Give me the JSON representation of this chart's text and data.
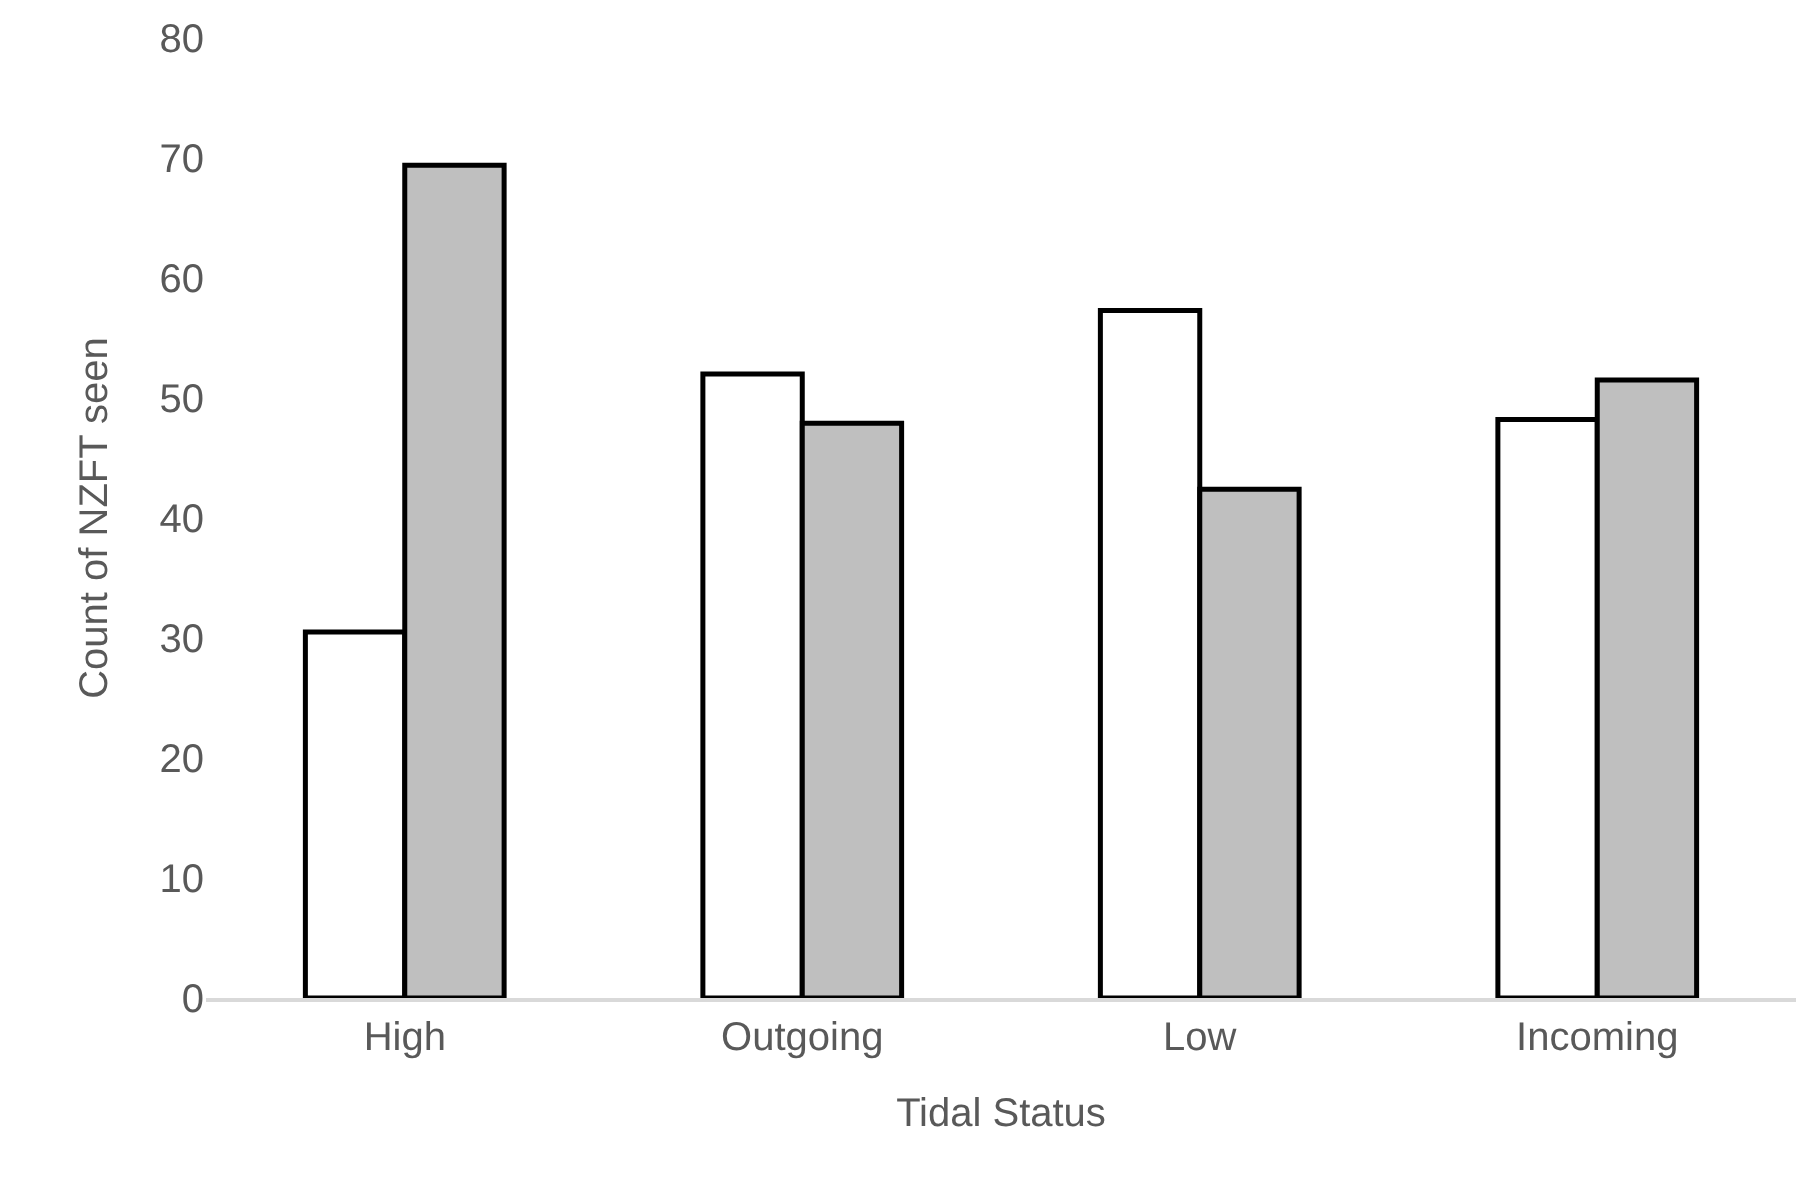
{
  "chart_data": {
    "type": "bar",
    "xlabel": "Tidal Status",
    "ylabel": "Count of NZFT seen",
    "categories": [
      "High",
      "Outgoing",
      "Low",
      "Incoming"
    ],
    "series": [
      {
        "color": "#ffffff",
        "values": [
          30.5,
          52,
          57.3,
          48.2
        ]
      },
      {
        "color": "#bfbfbf",
        "values": [
          69.4,
          47.9,
          42.4,
          51.5
        ]
      }
    ],
    "ylim": [
      0,
      80
    ],
    "yticks": [
      0,
      10,
      20,
      30,
      40,
      50,
      60,
      70,
      80
    ]
  }
}
